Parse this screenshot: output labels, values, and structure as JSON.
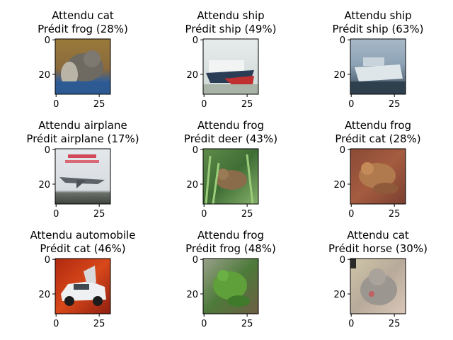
{
  "figure": {
    "panels": [
      {
        "expected_line": "Attendu cat",
        "predicted_line": "Prédit frog (28%)",
        "image": "CIFAR-10 thumbnail: cat sitting, brown/grey fur on orange and blue background"
      },
      {
        "expected_line": "Attendu ship",
        "predicted_line": "Prédit ship (49%)",
        "image": "CIFAR-10 thumbnail: ship with white superstructure and red/black hull on pale sea"
      },
      {
        "expected_line": "Attendu ship",
        "predicted_line": "Prédit ship (63%)",
        "image": "CIFAR-10 thumbnail: white boat on blue-grey water"
      },
      {
        "expected_line": "Attendu airplane",
        "predicted_line": "Prédit airplane (17%)",
        "image": "CIFAR-10 thumbnail: grey jet on a poster with red lettering"
      },
      {
        "expected_line": "Attendu frog",
        "predicted_line": "Prédit deer (43%)",
        "image": "CIFAR-10 thumbnail: brown frog in green grass"
      },
      {
        "expected_line": "Attendu frog",
        "predicted_line": "Prédit cat (28%)",
        "image": "CIFAR-10 thumbnail: brown frog on reddish soil"
      },
      {
        "expected_line": "Attendu automobile",
        "predicted_line": "Prédit cat (46%)",
        "image": "CIFAR-10 thumbnail: white car with open doors on red background"
      },
      {
        "expected_line": "Attendu frog",
        "predicted_line": "Prédit frog (48%)",
        "image": "CIFAR-10 thumbnail: green frog on green background"
      },
      {
        "expected_line": "Attendu cat",
        "predicted_line": "Prédit horse (30%)",
        "image": "CIFAR-10 thumbnail: grey cat on pale background"
      }
    ]
  },
  "chart_data": {
    "type": "image_grid",
    "rows": 3,
    "cols": 3,
    "image_size": [
      32,
      32
    ],
    "xticks": [
      0,
      25
    ],
    "yticks": [
      0,
      20
    ],
    "xtick_labels": [
      "0",
      "25"
    ],
    "ytick_labels": [
      "0",
      "20"
    ],
    "items": [
      {
        "expected": "cat",
        "predicted": "frog",
        "confidence": 28
      },
      {
        "expected": "ship",
        "predicted": "ship",
        "confidence": 49
      },
      {
        "expected": "ship",
        "predicted": "ship",
        "confidence": 63
      },
      {
        "expected": "airplane",
        "predicted": "airplane",
        "confidence": 17
      },
      {
        "expected": "frog",
        "predicted": "deer",
        "confidence": 43
      },
      {
        "expected": "frog",
        "predicted": "cat",
        "confidence": 28
      },
      {
        "expected": "automobile",
        "predicted": "cat",
        "confidence": 46
      },
      {
        "expected": "frog",
        "predicted": "frog",
        "confidence": 48
      },
      {
        "expected": "cat",
        "predicted": "horse",
        "confidence": 30
      }
    ]
  }
}
